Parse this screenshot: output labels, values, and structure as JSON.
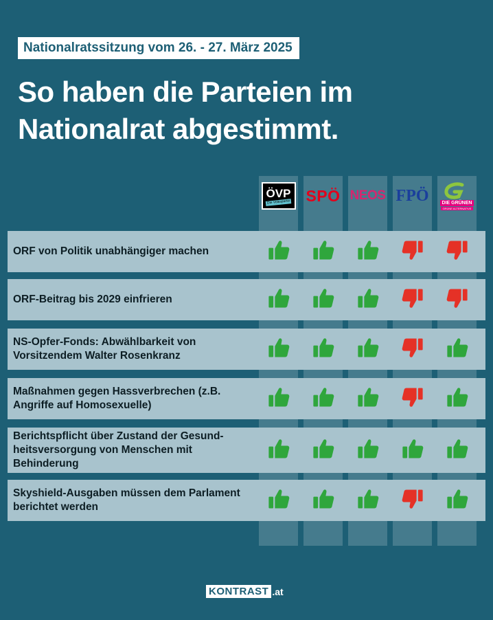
{
  "header": {
    "date_label": "Nationalratssitzung vom 26. - 27. März 2025",
    "title_line1": "So haben die Parteien im",
    "title_line2": "Nationalrat abgestimmt."
  },
  "parties": [
    {
      "id": "oevp",
      "logo_text": "ÖVP",
      "logo_sub": "Die Volkspartei"
    },
    {
      "id": "spoe",
      "logo_text": "SPÖ"
    },
    {
      "id": "neos",
      "logo_text": "NEOS"
    },
    {
      "id": "fpoe",
      "logo_text": "FPÖ"
    },
    {
      "id": "gruene",
      "logo_text": "DIE GRÜNEN",
      "logo_sub": "GRÜNE ALTERNATIVE"
    }
  ],
  "colors": {
    "background": "#1d5f75",
    "row_background": "#a8c3cd",
    "yes": "#2fa63c",
    "no": "#e53126"
  },
  "votes": [
    {
      "label": "ORF von Politik unabhängiger machen",
      "results": [
        "yes",
        "yes",
        "yes",
        "no",
        "no"
      ]
    },
    {
      "label": "ORF-Beitrag bis 2029 einfrieren",
      "results": [
        "yes",
        "yes",
        "yes",
        "no",
        "no"
      ]
    },
    {
      "label": "NS-Opfer-Fonds: Abwählbarkeit von Vorsitzendem Walter Rosenkranz",
      "results": [
        "yes",
        "yes",
        "yes",
        "no",
        "yes"
      ]
    },
    {
      "label": "Maßnahmen gegen Hassverbrechen (z.B. Angriffe auf Homosexuelle)",
      "results": [
        "yes",
        "yes",
        "yes",
        "no",
        "yes"
      ]
    },
    {
      "label": "Berichtspflicht über Zustand der Gesund-heitsversorgung von Menschen mit Behinderung",
      "results": [
        "yes",
        "yes",
        "yes",
        "yes",
        "yes"
      ]
    },
    {
      "label": "Skyshield-Ausgaben müssen dem Parlament berichtet werden",
      "results": [
        "yes",
        "yes",
        "yes",
        "no",
        "yes"
      ]
    }
  ],
  "footer": {
    "brand": "KONTRAST",
    "tld": ".at"
  }
}
